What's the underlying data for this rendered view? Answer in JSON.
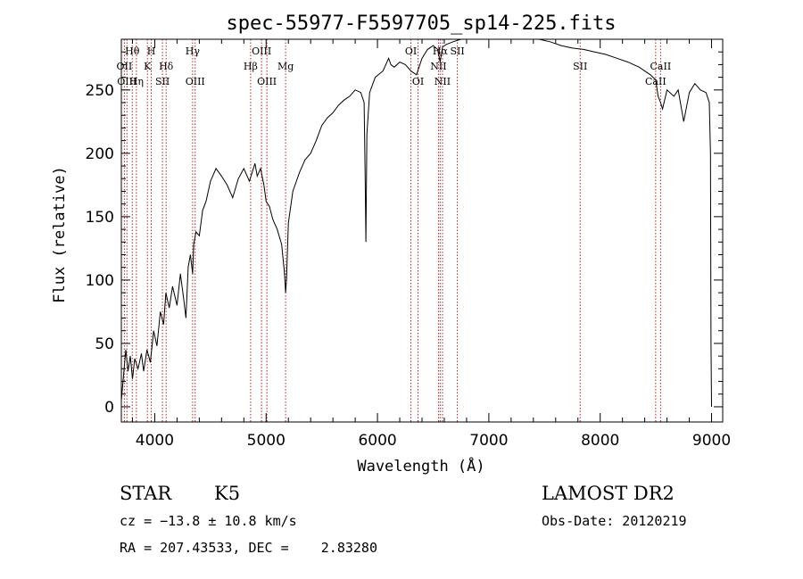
{
  "chart_data": {
    "type": "line",
    "title": "spec-55977-F5597705_sp14-225.fits",
    "xlabel": "Wavelength (Å)",
    "ylabel": "Flux (relative)",
    "xlim": [
      3700,
      9100
    ],
    "ylim": [
      -12,
      290
    ],
    "x_ticks": [
      4000,
      5000,
      6000,
      7000,
      8000,
      9000
    ],
    "y_ticks": [
      0,
      50,
      100,
      150,
      200,
      250
    ],
    "grid": false,
    "series": [
      {
        "x": [
          3700,
          3720,
          3740,
          3760,
          3780,
          3800,
          3820,
          3850,
          3880,
          3900,
          3930,
          3960,
          3990,
          4020,
          4050,
          4080,
          4100,
          4130,
          4160,
          4200,
          4230,
          4260,
          4280,
          4300,
          4320,
          4340,
          4350,
          4370,
          4400,
          4430,
          4460,
          4500,
          4550,
          4600,
          4650,
          4700,
          4750,
          4800,
          4850,
          4900,
          4920,
          4950,
          4980,
          5000,
          5030,
          5060,
          5100,
          5140,
          5165,
          5175,
          5183,
          5200,
          5240,
          5300,
          5350,
          5400,
          5450,
          5500,
          5550,
          5600,
          5650,
          5700,
          5750,
          5800,
          5850,
          5880,
          5890,
          5896,
          5905,
          5930,
          5980,
          6050,
          6100,
          6120,
          6150,
          6200,
          6250,
          6300,
          6350,
          6400,
          6450,
          6500,
          6540,
          6563,
          6585,
          6620,
          6680,
          6750,
          6850,
          6950,
          7050,
          7150,
          7250,
          7350,
          7450,
          7550,
          7650,
          7750,
          7850,
          7950,
          8050,
          8150,
          8250,
          8350,
          8450,
          8498,
          8520,
          8542,
          8560,
          8600,
          8662,
          8700,
          8750,
          8800,
          8850,
          8900,
          8950,
          8980,
          8990,
          8995,
          9000
        ],
        "y": [
          5,
          25,
          45,
          28,
          40,
          22,
          38,
          30,
          42,
          28,
          45,
          35,
          60,
          48,
          75,
          65,
          90,
          78,
          95,
          80,
          105,
          85,
          70,
          110,
          120,
          105,
          128,
          138,
          135,
          155,
          162,
          178,
          188,
          182,
          175,
          165,
          180,
          188,
          178,
          192,
          182,
          188,
          175,
          162,
          158,
          148,
          140,
          128,
          105,
          90,
          100,
          145,
          170,
          185,
          195,
          200,
          210,
          222,
          228,
          232,
          238,
          242,
          245,
          250,
          248,
          240,
          180,
          130,
          215,
          248,
          260,
          265,
          275,
          270,
          268,
          272,
          270,
          265,
          262,
          275,
          282,
          285,
          282,
          272,
          284,
          286,
          288,
          290,
          290,
          290,
          290,
          290,
          290,
          290,
          290,
          288,
          285,
          283,
          282,
          280,
          278,
          275,
          272,
          268,
          262,
          258,
          245,
          240,
          235,
          250,
          245,
          250,
          225,
          248,
          255,
          250,
          248,
          240,
          200,
          50,
          0
        ]
      }
    ],
    "lines": [
      {
        "label": "Hθ",
        "wl": 3798,
        "row": 0
      },
      {
        "label": "H",
        "wl": 3969,
        "row": 0
      },
      {
        "label": "Hγ",
        "wl": 4340,
        "row": 0
      },
      {
        "label": "OIII",
        "wl": 4959,
        "row": 0
      },
      {
        "label": "OI",
        "wl": 6300,
        "row": 0
      },
      {
        "label": "Hα",
        "wl": 6563,
        "row": 0
      },
      {
        "label": "SII",
        "wl": 6717,
        "row": 0
      },
      {
        "label": "OII",
        "wl": 3727,
        "row": 1
      },
      {
        "label": "K",
        "wl": 3934,
        "row": 1
      },
      {
        "label": "Hδ",
        "wl": 4102,
        "row": 1
      },
      {
        "label": "Hβ",
        "wl": 4861,
        "row": 1
      },
      {
        "label": "Mg",
        "wl": 5175,
        "row": 1
      },
      {
        "label": "NII",
        "wl": 6548,
        "row": 1
      },
      {
        "label": "SII",
        "wl": 7820,
        "row": 1
      },
      {
        "label": "CaII",
        "wl": 8542,
        "row": 1
      },
      {
        "label": "OIII",
        "wl": 3750,
        "row": 2
      },
      {
        "label": "Hη",
        "wl": 3835,
        "row": 2
      },
      {
        "label": "SII",
        "wl": 4069,
        "row": 2
      },
      {
        "label": "OIII",
        "wl": 4363,
        "row": 2
      },
      {
        "label": "OIII",
        "wl": 5007,
        "row": 2
      },
      {
        "label": "OI",
        "wl": 6364,
        "row": 2
      },
      {
        "label": "NII",
        "wl": 6584,
        "row": 2
      },
      {
        "label": "CaII",
        "wl": 8498,
        "row": 2
      }
    ],
    "line_color": "#b22222"
  },
  "info": {
    "object_class": "STAR",
    "subclass": "K5",
    "survey": "LAMOST DR2",
    "cz": "cz = −13.8 ± 10.8 km/s",
    "obs_date": "Obs-Date: 20120219",
    "radec": "RA = 207.43533, DEC =    2.83280"
  }
}
